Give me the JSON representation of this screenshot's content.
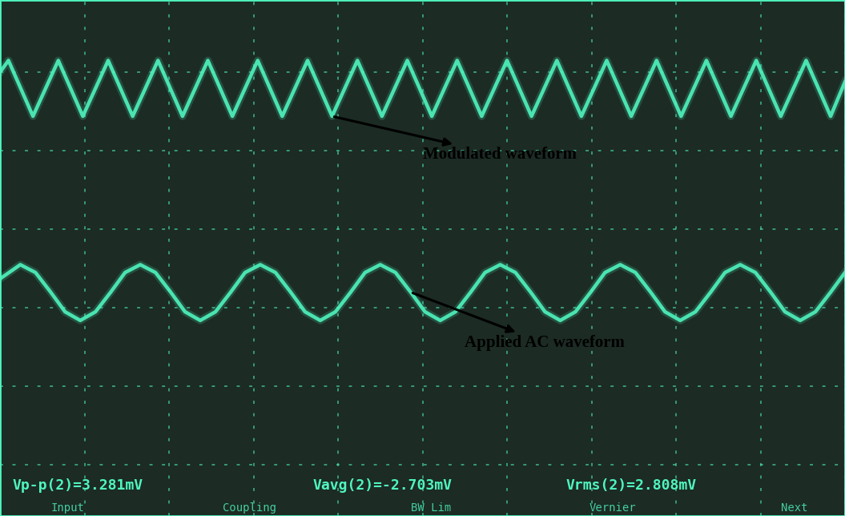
{
  "chart_data": {
    "type": "line",
    "series": [
      {
        "name": "Modulated waveform",
        "color": "#4ff5bf",
        "line_style": "solid",
        "x": [
          0.0,
          0.1,
          0.39,
          0.69,
          0.98,
          1.28,
          1.57,
          1.87,
          2.16,
          2.46,
          2.75,
          3.05,
          3.34,
          3.64,
          3.93,
          4.23,
          4.52,
          4.82,
          5.11,
          5.41,
          5.7,
          6.0,
          6.29,
          6.59,
          6.88,
          7.18,
          7.47,
          7.77,
          8.06,
          8.36,
          8.65,
          8.95,
          9.24,
          9.54,
          9.83,
          10.0
        ],
        "values": [
          5.0,
          5.15,
          4.44,
          5.15,
          4.44,
          5.15,
          4.44,
          5.15,
          4.44,
          5.15,
          4.44,
          5.15,
          4.44,
          5.15,
          4.44,
          5.15,
          4.44,
          5.15,
          4.44,
          5.15,
          4.44,
          5.15,
          4.44,
          5.15,
          4.44,
          5.15,
          4.44,
          5.15,
          4.44,
          5.15,
          4.44,
          5.15,
          4.44,
          5.15,
          4.44,
          4.88
        ]
      },
      {
        "name": "Applied AC waveform",
        "color": "#4ff5bf",
        "line_style": "solid",
        "x": [
          0.0,
          0.24,
          0.42,
          0.6,
          0.77,
          0.95,
          1.13,
          1.31,
          1.48,
          1.66,
          1.84,
          2.02,
          2.19,
          2.37,
          2.55,
          2.73,
          2.9,
          3.08,
          3.26,
          3.44,
          3.61,
          3.79,
          3.97,
          4.15,
          4.32,
          4.5,
          4.68,
          4.86,
          5.03,
          5.21,
          5.39,
          5.57,
          5.74,
          5.92,
          6.1,
          6.28,
          6.45,
          6.63,
          6.81,
          6.99,
          7.16,
          7.34,
          7.52,
          7.7,
          7.87,
          8.05,
          8.23,
          8.41,
          8.58,
          8.76,
          8.94,
          9.12,
          9.29,
          9.47,
          9.65,
          9.83,
          10.0
        ],
        "values": [
          2.37,
          2.55,
          2.45,
          2.2,
          1.95,
          1.84,
          1.95,
          2.2,
          2.45,
          2.55,
          2.45,
          2.2,
          1.95,
          1.84,
          1.95,
          2.2,
          2.45,
          2.55,
          2.45,
          2.2,
          1.95,
          1.84,
          1.95,
          2.2,
          2.45,
          2.55,
          2.45,
          2.2,
          1.95,
          1.84,
          1.95,
          2.2,
          2.45,
          2.55,
          2.45,
          2.2,
          1.95,
          1.84,
          1.95,
          2.2,
          2.45,
          2.55,
          2.45,
          2.2,
          1.95,
          1.84,
          1.95,
          2.2,
          2.45,
          2.55,
          2.45,
          2.2,
          1.95,
          1.84,
          1.95,
          2.2,
          2.45
        ]
      }
    ],
    "xlim": [
      0,
      10
    ],
    "ylim": [
      -0.65,
      5.92
    ],
    "xticks": [
      0,
      1,
      2,
      3,
      4,
      5,
      6,
      7,
      8,
      9,
      10
    ],
    "yticks": [
      0,
      1,
      2,
      3,
      4,
      5
    ],
    "grid": true,
    "tick_labels": false,
    "measurements": [
      "Vp-p(2)=3.281mV",
      "Vavg(2)=-2.703mV",
      "Vrms(2)=2.808mV"
    ],
    "softkeys": [
      "Input",
      "Coupling",
      "BW Lim",
      "Vernier",
      "Next"
    ]
  }
}
